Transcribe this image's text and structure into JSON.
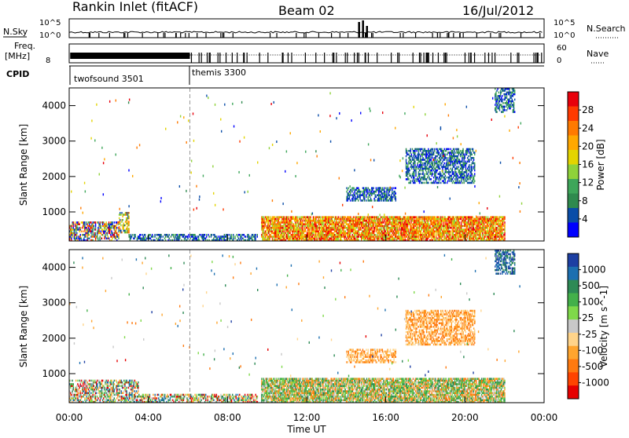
{
  "header": {
    "station": "Rankin Inlet (fitACF)",
    "beam": "Beam 02",
    "date": "16/Jul/2012"
  },
  "noise_panel": {
    "left_label": "N.Sky",
    "right_label": "N.Search",
    "left_ticks": [
      "10^5",
      "10^0"
    ],
    "right_ticks": [
      "10^5",
      "10^0"
    ]
  },
  "freq_panel": {
    "left_label_line1": "Freq.",
    "left_label_line2": "[MHz]",
    "right_label": "Nave",
    "left_ticks": [
      "8"
    ],
    "right_ticks": [
      "60",
      "0"
    ]
  },
  "cpid": {
    "label": "CPID",
    "segments": [
      {
        "name": "twofsound 3501",
        "start_hour": 0,
        "end_hour": 6.1
      },
      {
        "name": "themis 3300",
        "start_hour": 6.1,
        "end_hour": 24
      }
    ]
  },
  "x_axis": {
    "label": "Time UT",
    "ticks": [
      "00:00",
      "04:00",
      "08:00",
      "12:00",
      "16:00",
      "20:00",
      "00:00"
    ]
  },
  "power_panel": {
    "ylabel": "Slant Range [km]",
    "yticks": [
      "1000",
      "2000",
      "3000",
      "4000"
    ],
    "colorbar_label": "Power [dB]",
    "colorbar_ticks": [
      "28",
      "24",
      "20",
      "16",
      "12",
      "8",
      "4"
    ],
    "colorbar_colors": [
      "#e8000b",
      "#ff3a00",
      "#ff7a00",
      "#ffa800",
      "#e3d400",
      "#8fd23a",
      "#3ea65a",
      "#2f8a4e",
      "#0a4da8",
      "#0000ff"
    ]
  },
  "velocity_panel": {
    "ylabel": "Slant Range [km]",
    "yticks": [
      "1000",
      "2000",
      "3000",
      "4000"
    ],
    "colorbar_label": "Velocity [m s^-1]",
    "colorbar_ticks": [
      "1000",
      "500",
      "100",
      "25",
      "-25",
      "-100",
      "-500",
      "-1000"
    ],
    "colorbar_colors": [
      "#1d3fa3",
      "#1c6fb0",
      "#2d8a55",
      "#43b04a",
      "#7fd94a",
      "#c8c8c8",
      "#ffd48a",
      "#ffa52e",
      "#ff7a10",
      "#ff4400",
      "#e60000"
    ]
  },
  "chart_data": {
    "type": "heatmap",
    "x_range_hours": [
      0,
      24
    ],
    "y_range_km": [
      180,
      4500
    ],
    "panels": [
      {
        "name": "power",
        "unit": "dB",
        "range": [
          0,
          30
        ],
        "regions": [
          {
            "t0": 0.0,
            "t1": 2.5,
            "r0": 180,
            "r1": 700,
            "level": "mixed-low"
          },
          {
            "t0": 2.5,
            "t1": 3.0,
            "r0": 400,
            "r1": 1000,
            "level": "mixed"
          },
          {
            "t0": 3.0,
            "t1": 9.5,
            "r0": 180,
            "r1": 380,
            "level": "low"
          },
          {
            "t0": 9.7,
            "t1": 22.0,
            "r0": 180,
            "r1": 850,
            "level": "high"
          },
          {
            "t0": 14.0,
            "t1": 16.5,
            "r0": 1300,
            "r1": 1700,
            "level": "low"
          },
          {
            "t0": 17.0,
            "t1": 20.5,
            "r0": 1800,
            "r1": 2800,
            "level": "low"
          },
          {
            "t0": 21.5,
            "t1": 22.5,
            "r0": 3800,
            "r1": 4500,
            "level": "low"
          }
        ]
      },
      {
        "name": "velocity",
        "unit": "m s^-1",
        "range": [
          -1000,
          1000
        ],
        "regions": [
          {
            "t0": 0.0,
            "t1": 3.5,
            "r0": 180,
            "r1": 800,
            "level": "mixed"
          },
          {
            "t0": 3.5,
            "t1": 9.5,
            "r0": 180,
            "r1": 400,
            "level": "mixed"
          },
          {
            "t0": 9.7,
            "t1": 22.0,
            "r0": 180,
            "r1": 850,
            "level": "green-orange"
          },
          {
            "t0": 14.0,
            "t1": 16.5,
            "r0": 1300,
            "r1": 1700,
            "level": "orange"
          },
          {
            "t0": 17.0,
            "t1": 20.5,
            "r0": 1800,
            "r1": 2800,
            "level": "orange"
          },
          {
            "t0": 21.5,
            "t1": 22.5,
            "r0": 3800,
            "r1": 4500,
            "level": "blue"
          }
        ]
      }
    ]
  }
}
